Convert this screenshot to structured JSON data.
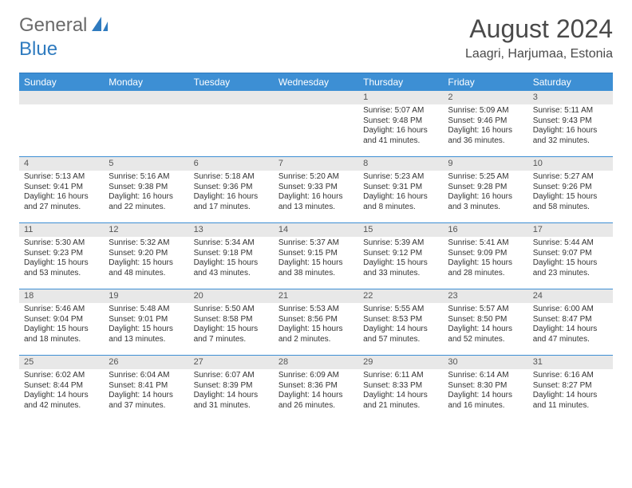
{
  "logo": {
    "general": "General",
    "blue": "Blue"
  },
  "title": "August 2024",
  "location": "Laagri, Harjumaa, Estonia",
  "daysOfWeek": [
    "Sunday",
    "Monday",
    "Tuesday",
    "Wednesday",
    "Thursday",
    "Friday",
    "Saturday"
  ],
  "colors": {
    "header_bg": "#3d8fd4",
    "border": "#3d8fd4",
    "daynum_bg": "#e8e8e8",
    "logo_blue": "#2f7bbf",
    "logo_gray": "#6a6a6a"
  },
  "weeks": [
    [
      {
        "num": "",
        "sunrise": "",
        "sunset": "",
        "daylight": ""
      },
      {
        "num": "",
        "sunrise": "",
        "sunset": "",
        "daylight": ""
      },
      {
        "num": "",
        "sunrise": "",
        "sunset": "",
        "daylight": ""
      },
      {
        "num": "",
        "sunrise": "",
        "sunset": "",
        "daylight": ""
      },
      {
        "num": "1",
        "sunrise": "Sunrise: 5:07 AM",
        "sunset": "Sunset: 9:48 PM",
        "daylight": "Daylight: 16 hours and 41 minutes."
      },
      {
        "num": "2",
        "sunrise": "Sunrise: 5:09 AM",
        "sunset": "Sunset: 9:46 PM",
        "daylight": "Daylight: 16 hours and 36 minutes."
      },
      {
        "num": "3",
        "sunrise": "Sunrise: 5:11 AM",
        "sunset": "Sunset: 9:43 PM",
        "daylight": "Daylight: 16 hours and 32 minutes."
      }
    ],
    [
      {
        "num": "4",
        "sunrise": "Sunrise: 5:13 AM",
        "sunset": "Sunset: 9:41 PM",
        "daylight": "Daylight: 16 hours and 27 minutes."
      },
      {
        "num": "5",
        "sunrise": "Sunrise: 5:16 AM",
        "sunset": "Sunset: 9:38 PM",
        "daylight": "Daylight: 16 hours and 22 minutes."
      },
      {
        "num": "6",
        "sunrise": "Sunrise: 5:18 AM",
        "sunset": "Sunset: 9:36 PM",
        "daylight": "Daylight: 16 hours and 17 minutes."
      },
      {
        "num": "7",
        "sunrise": "Sunrise: 5:20 AM",
        "sunset": "Sunset: 9:33 PM",
        "daylight": "Daylight: 16 hours and 13 minutes."
      },
      {
        "num": "8",
        "sunrise": "Sunrise: 5:23 AM",
        "sunset": "Sunset: 9:31 PM",
        "daylight": "Daylight: 16 hours and 8 minutes."
      },
      {
        "num": "9",
        "sunrise": "Sunrise: 5:25 AM",
        "sunset": "Sunset: 9:28 PM",
        "daylight": "Daylight: 16 hours and 3 minutes."
      },
      {
        "num": "10",
        "sunrise": "Sunrise: 5:27 AM",
        "sunset": "Sunset: 9:26 PM",
        "daylight": "Daylight: 15 hours and 58 minutes."
      }
    ],
    [
      {
        "num": "11",
        "sunrise": "Sunrise: 5:30 AM",
        "sunset": "Sunset: 9:23 PM",
        "daylight": "Daylight: 15 hours and 53 minutes."
      },
      {
        "num": "12",
        "sunrise": "Sunrise: 5:32 AM",
        "sunset": "Sunset: 9:20 PM",
        "daylight": "Daylight: 15 hours and 48 minutes."
      },
      {
        "num": "13",
        "sunrise": "Sunrise: 5:34 AM",
        "sunset": "Sunset: 9:18 PM",
        "daylight": "Daylight: 15 hours and 43 minutes."
      },
      {
        "num": "14",
        "sunrise": "Sunrise: 5:37 AM",
        "sunset": "Sunset: 9:15 PM",
        "daylight": "Daylight: 15 hours and 38 minutes."
      },
      {
        "num": "15",
        "sunrise": "Sunrise: 5:39 AM",
        "sunset": "Sunset: 9:12 PM",
        "daylight": "Daylight: 15 hours and 33 minutes."
      },
      {
        "num": "16",
        "sunrise": "Sunrise: 5:41 AM",
        "sunset": "Sunset: 9:09 PM",
        "daylight": "Daylight: 15 hours and 28 minutes."
      },
      {
        "num": "17",
        "sunrise": "Sunrise: 5:44 AM",
        "sunset": "Sunset: 9:07 PM",
        "daylight": "Daylight: 15 hours and 23 minutes."
      }
    ],
    [
      {
        "num": "18",
        "sunrise": "Sunrise: 5:46 AM",
        "sunset": "Sunset: 9:04 PM",
        "daylight": "Daylight: 15 hours and 18 minutes."
      },
      {
        "num": "19",
        "sunrise": "Sunrise: 5:48 AM",
        "sunset": "Sunset: 9:01 PM",
        "daylight": "Daylight: 15 hours and 13 minutes."
      },
      {
        "num": "20",
        "sunrise": "Sunrise: 5:50 AM",
        "sunset": "Sunset: 8:58 PM",
        "daylight": "Daylight: 15 hours and 7 minutes."
      },
      {
        "num": "21",
        "sunrise": "Sunrise: 5:53 AM",
        "sunset": "Sunset: 8:56 PM",
        "daylight": "Daylight: 15 hours and 2 minutes."
      },
      {
        "num": "22",
        "sunrise": "Sunrise: 5:55 AM",
        "sunset": "Sunset: 8:53 PM",
        "daylight": "Daylight: 14 hours and 57 minutes."
      },
      {
        "num": "23",
        "sunrise": "Sunrise: 5:57 AM",
        "sunset": "Sunset: 8:50 PM",
        "daylight": "Daylight: 14 hours and 52 minutes."
      },
      {
        "num": "24",
        "sunrise": "Sunrise: 6:00 AM",
        "sunset": "Sunset: 8:47 PM",
        "daylight": "Daylight: 14 hours and 47 minutes."
      }
    ],
    [
      {
        "num": "25",
        "sunrise": "Sunrise: 6:02 AM",
        "sunset": "Sunset: 8:44 PM",
        "daylight": "Daylight: 14 hours and 42 minutes."
      },
      {
        "num": "26",
        "sunrise": "Sunrise: 6:04 AM",
        "sunset": "Sunset: 8:41 PM",
        "daylight": "Daylight: 14 hours and 37 minutes."
      },
      {
        "num": "27",
        "sunrise": "Sunrise: 6:07 AM",
        "sunset": "Sunset: 8:39 PM",
        "daylight": "Daylight: 14 hours and 31 minutes."
      },
      {
        "num": "28",
        "sunrise": "Sunrise: 6:09 AM",
        "sunset": "Sunset: 8:36 PM",
        "daylight": "Daylight: 14 hours and 26 minutes."
      },
      {
        "num": "29",
        "sunrise": "Sunrise: 6:11 AM",
        "sunset": "Sunset: 8:33 PM",
        "daylight": "Daylight: 14 hours and 21 minutes."
      },
      {
        "num": "30",
        "sunrise": "Sunrise: 6:14 AM",
        "sunset": "Sunset: 8:30 PM",
        "daylight": "Daylight: 14 hours and 16 minutes."
      },
      {
        "num": "31",
        "sunrise": "Sunrise: 6:16 AM",
        "sunset": "Sunset: 8:27 PM",
        "daylight": "Daylight: 14 hours and 11 minutes."
      }
    ]
  ]
}
